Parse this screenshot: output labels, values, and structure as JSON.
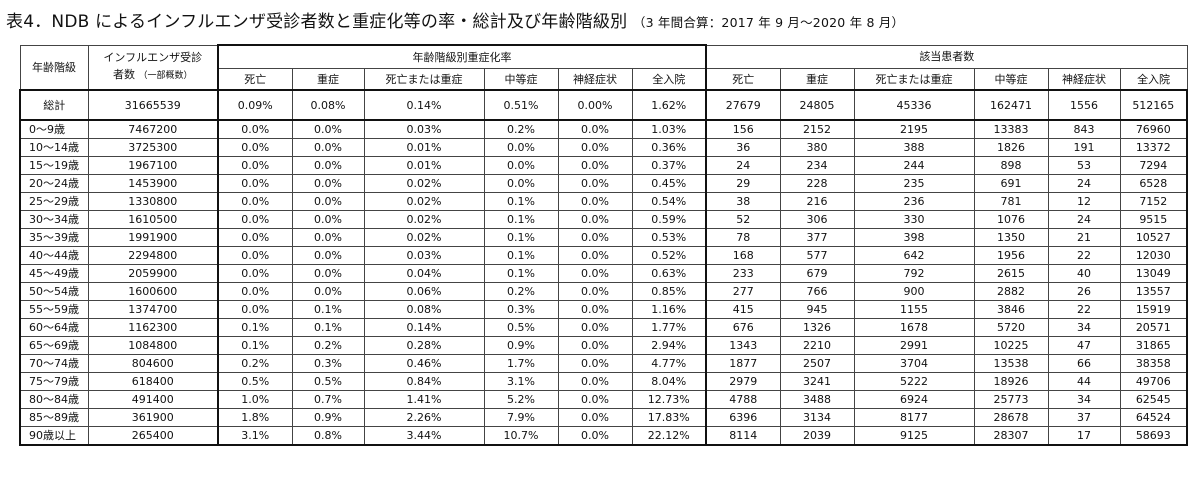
{
  "title": "表4．NDB によるインフルエンザ受診者数と重症化等の率・総計及び年齢階級別",
  "subtitle": "（3 年間合算：2017 年 9 月〜2020 年 8 月）",
  "headers": {
    "age": "年齢階級",
    "patients_line1": "インフルエンザ受診",
    "patients_line2": "者数",
    "patients_note": "（一部概数）",
    "rate_group": "年齢階級別重症化率",
    "count_group": "該当患者数",
    "sub": [
      "死亡",
      "重症",
      "死亡または重症",
      "中等症",
      "神経症状",
      "全入院"
    ]
  },
  "total": {
    "label": "総計",
    "patients": "31665539",
    "rates": [
      "0.09%",
      "0.08%",
      "0.14%",
      "0.51%",
      "0.00%",
      "1.62%"
    ],
    "counts": [
      "27679",
      "24805",
      "45336",
      "162471",
      "1556",
      "512165"
    ]
  },
  "rows": [
    {
      "age": "0〜9歳",
      "patients": "7467200",
      "rates": [
        "0.0%",
        "0.0%",
        "0.03%",
        "0.2%",
        "0.0%",
        "1.03%"
      ],
      "counts": [
        "156",
        "2152",
        "2195",
        "13383",
        "843",
        "76960"
      ]
    },
    {
      "age": "10〜14歳",
      "patients": "3725300",
      "rates": [
        "0.0%",
        "0.0%",
        "0.01%",
        "0.0%",
        "0.0%",
        "0.36%"
      ],
      "counts": [
        "36",
        "380",
        "388",
        "1826",
        "191",
        "13372"
      ]
    },
    {
      "age": "15〜19歳",
      "patients": "1967100",
      "rates": [
        "0.0%",
        "0.0%",
        "0.01%",
        "0.0%",
        "0.0%",
        "0.37%"
      ],
      "counts": [
        "24",
        "234",
        "244",
        "898",
        "53",
        "7294"
      ]
    },
    {
      "age": "20〜24歳",
      "patients": "1453900",
      "rates": [
        "0.0%",
        "0.0%",
        "0.02%",
        "0.0%",
        "0.0%",
        "0.45%"
      ],
      "counts": [
        "29",
        "228",
        "235",
        "691",
        "24",
        "6528"
      ]
    },
    {
      "age": "25〜29歳",
      "patients": "1330800",
      "rates": [
        "0.0%",
        "0.0%",
        "0.02%",
        "0.1%",
        "0.0%",
        "0.54%"
      ],
      "counts": [
        "38",
        "216",
        "236",
        "781",
        "12",
        "7152"
      ]
    },
    {
      "age": "30〜34歳",
      "patients": "1610500",
      "rates": [
        "0.0%",
        "0.0%",
        "0.02%",
        "0.1%",
        "0.0%",
        "0.59%"
      ],
      "counts": [
        "52",
        "306",
        "330",
        "1076",
        "24",
        "9515"
      ]
    },
    {
      "age": "35〜39歳",
      "patients": "1991900",
      "rates": [
        "0.0%",
        "0.0%",
        "0.02%",
        "0.1%",
        "0.0%",
        "0.53%"
      ],
      "counts": [
        "78",
        "377",
        "398",
        "1350",
        "21",
        "10527"
      ]
    },
    {
      "age": "40〜44歳",
      "patients": "2294800",
      "rates": [
        "0.0%",
        "0.0%",
        "0.03%",
        "0.1%",
        "0.0%",
        "0.52%"
      ],
      "counts": [
        "168",
        "577",
        "642",
        "1956",
        "22",
        "12030"
      ]
    },
    {
      "age": "45〜49歳",
      "patients": "2059900",
      "rates": [
        "0.0%",
        "0.0%",
        "0.04%",
        "0.1%",
        "0.0%",
        "0.63%"
      ],
      "counts": [
        "233",
        "679",
        "792",
        "2615",
        "40",
        "13049"
      ]
    },
    {
      "age": "50〜54歳",
      "patients": "1600600",
      "rates": [
        "0.0%",
        "0.0%",
        "0.06%",
        "0.2%",
        "0.0%",
        "0.85%"
      ],
      "counts": [
        "277",
        "766",
        "900",
        "2882",
        "26",
        "13557"
      ]
    },
    {
      "age": "55〜59歳",
      "patients": "1374700",
      "rates": [
        "0.0%",
        "0.1%",
        "0.08%",
        "0.3%",
        "0.0%",
        "1.16%"
      ],
      "counts": [
        "415",
        "945",
        "1155",
        "3846",
        "22",
        "15919"
      ]
    },
    {
      "age": "60〜64歳",
      "patients": "1162300",
      "rates": [
        "0.1%",
        "0.1%",
        "0.14%",
        "0.5%",
        "0.0%",
        "1.77%"
      ],
      "counts": [
        "676",
        "1326",
        "1678",
        "5720",
        "34",
        "20571"
      ]
    },
    {
      "age": "65〜69歳",
      "patients": "1084800",
      "rates": [
        "0.1%",
        "0.2%",
        "0.28%",
        "0.9%",
        "0.0%",
        "2.94%"
      ],
      "counts": [
        "1343",
        "2210",
        "2991",
        "10225",
        "47",
        "31865"
      ]
    },
    {
      "age": "70〜74歳",
      "patients": "804600",
      "rates": [
        "0.2%",
        "0.3%",
        "0.46%",
        "1.7%",
        "0.0%",
        "4.77%"
      ],
      "counts": [
        "1877",
        "2507",
        "3704",
        "13538",
        "66",
        "38358"
      ]
    },
    {
      "age": "75〜79歳",
      "patients": "618400",
      "rates": [
        "0.5%",
        "0.5%",
        "0.84%",
        "3.1%",
        "0.0%",
        "8.04%"
      ],
      "counts": [
        "2979",
        "3241",
        "5222",
        "18926",
        "44",
        "49706"
      ]
    },
    {
      "age": "80〜84歳",
      "patients": "491400",
      "rates": [
        "1.0%",
        "0.7%",
        "1.41%",
        "5.2%",
        "0.0%",
        "12.73%"
      ],
      "counts": [
        "4788",
        "3488",
        "6924",
        "25773",
        "34",
        "62545"
      ]
    },
    {
      "age": "85〜89歳",
      "patients": "361900",
      "rates": [
        "1.8%",
        "0.9%",
        "2.26%",
        "7.9%",
        "0.0%",
        "17.83%"
      ],
      "counts": [
        "6396",
        "3134",
        "8177",
        "28678",
        "37",
        "64524"
      ]
    },
    {
      "age": "90歳以上",
      "patients": "265400",
      "rates": [
        "3.1%",
        "0.8%",
        "3.44%",
        "10.7%",
        "0.0%",
        "22.12%"
      ],
      "counts": [
        "8114",
        "2039",
        "9125",
        "28307",
        "17",
        "58693"
      ]
    }
  ]
}
